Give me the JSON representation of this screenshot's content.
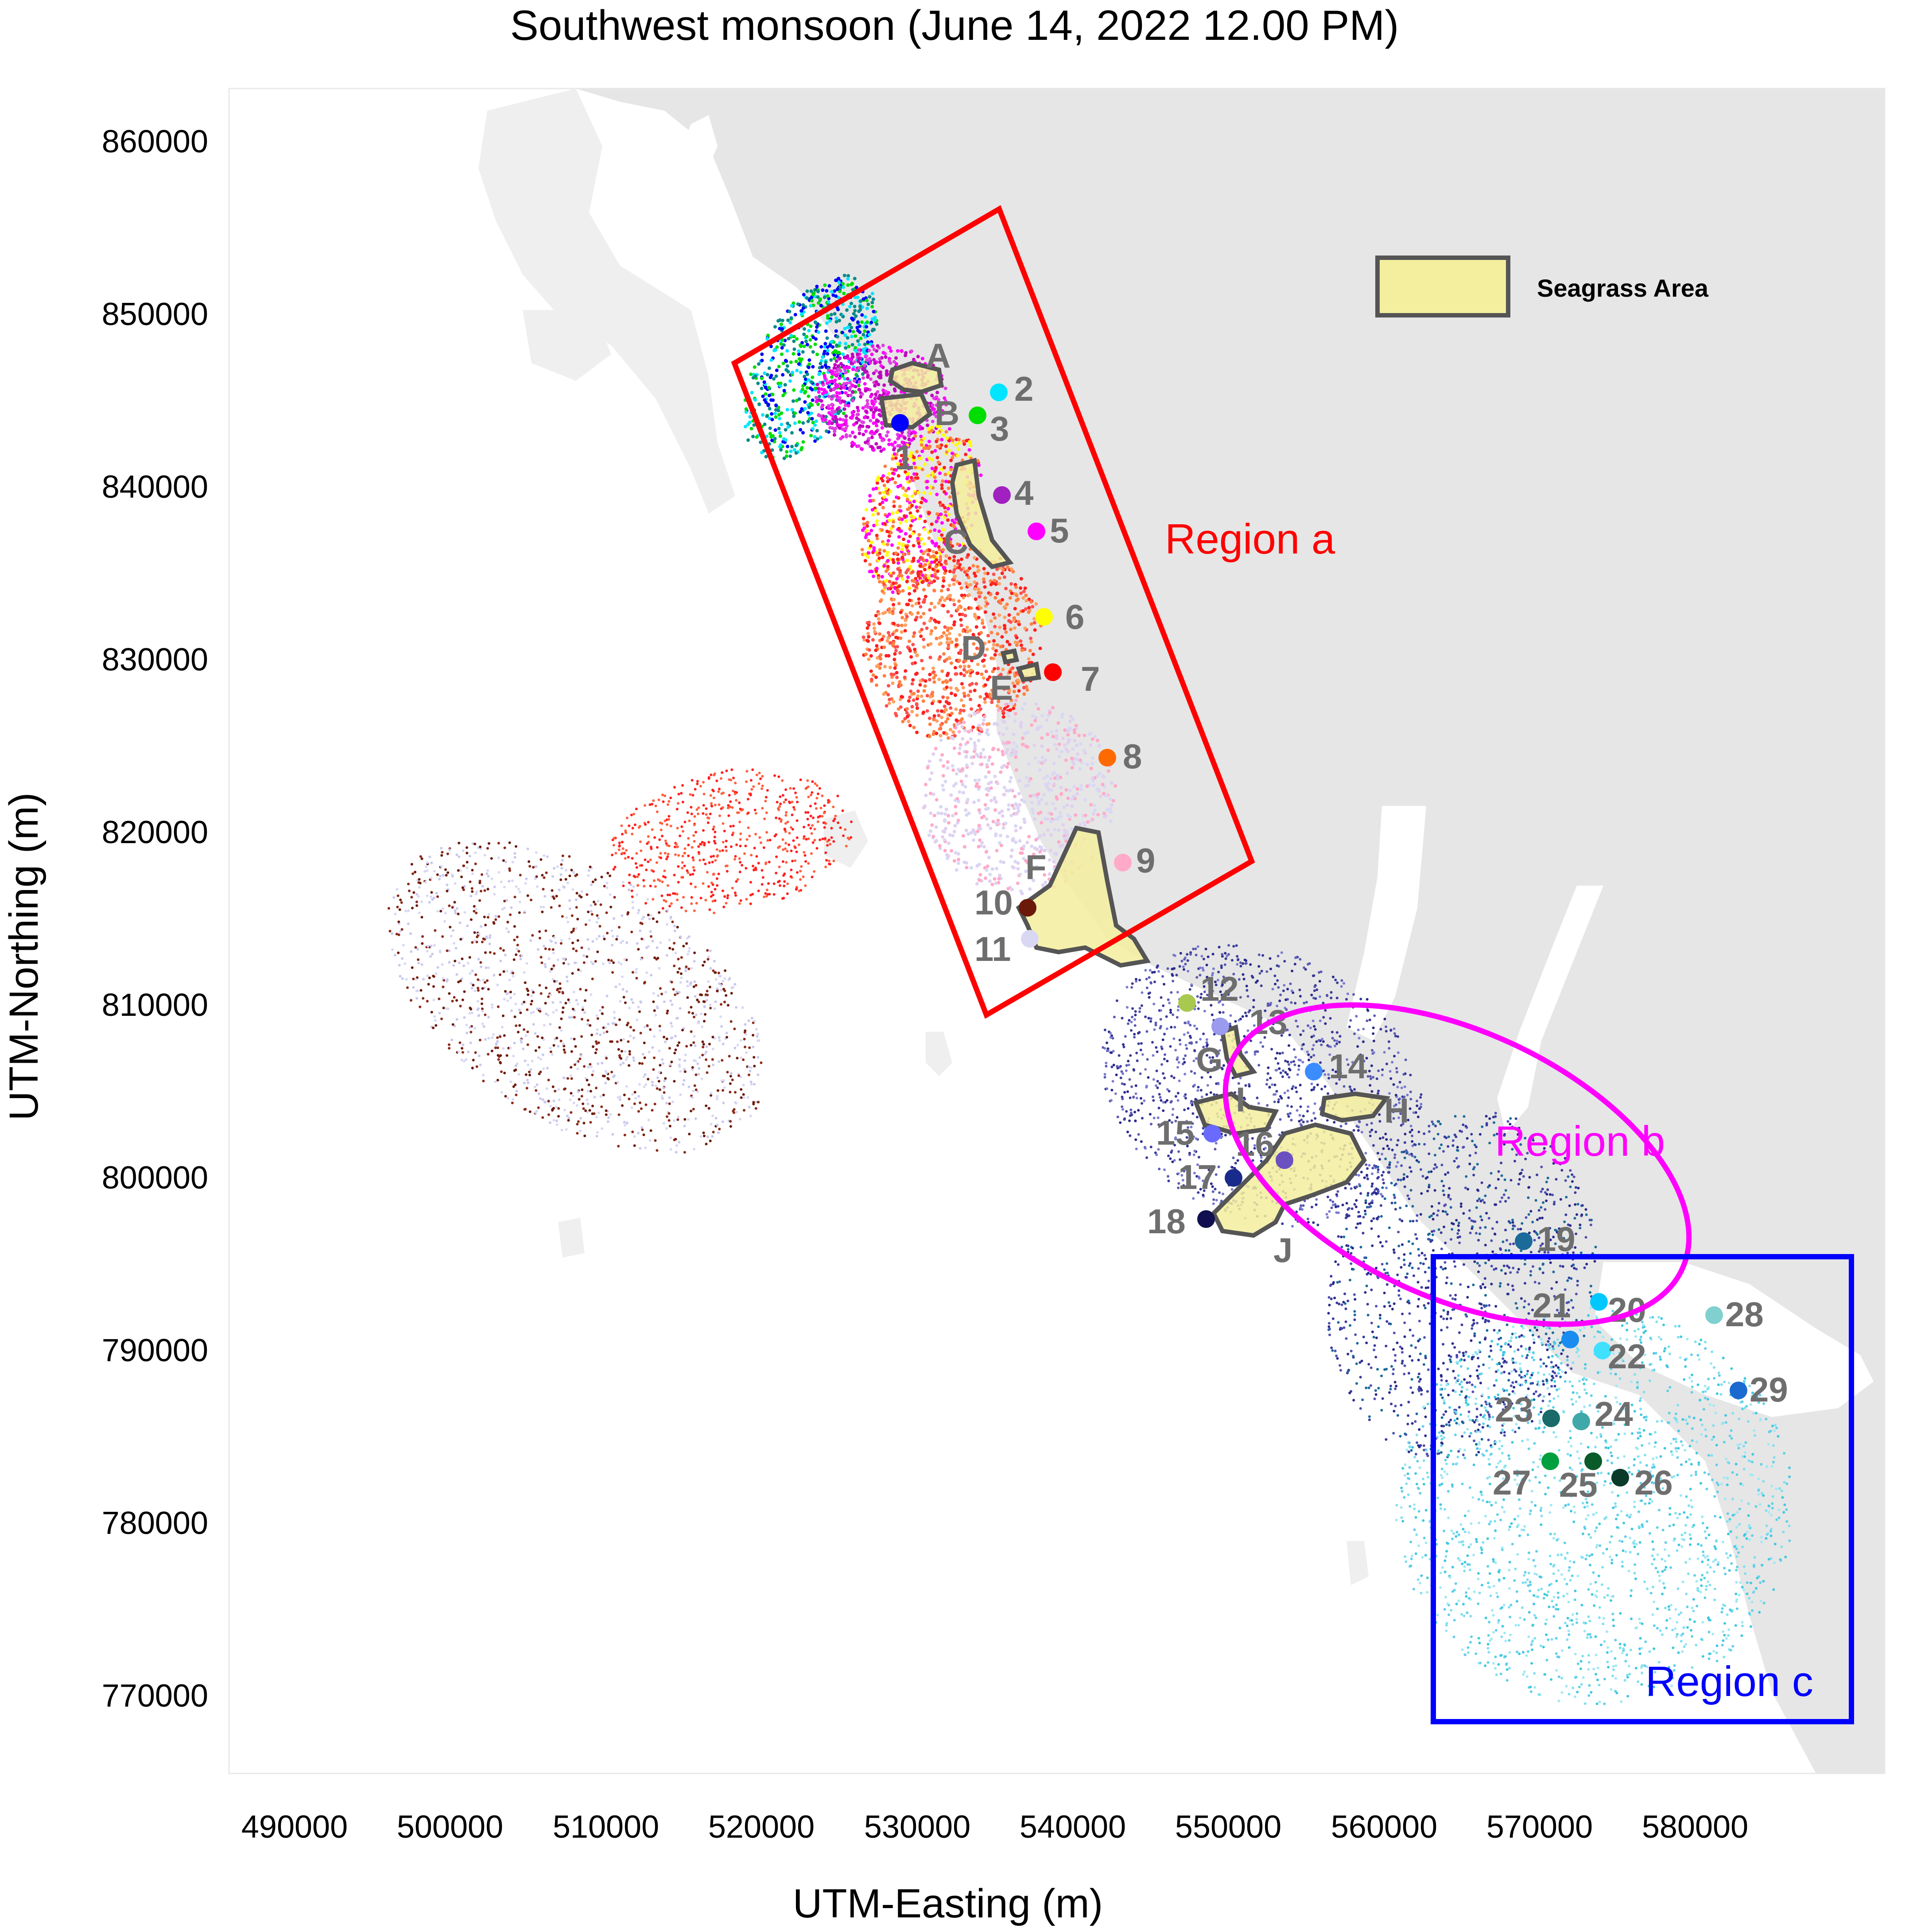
{
  "title": "Southwest monsoon (June 14, 2022 12.00 PM)",
  "x_axis": {
    "label": "UTM-Easting (m)",
    "ticks": [
      "490000",
      "500000",
      "510000",
      "520000",
      "530000",
      "540000",
      "550000",
      "560000",
      "570000",
      "580000"
    ]
  },
  "y_axis": {
    "label": "UTM-Northing (m)",
    "ticks": [
      "860000",
      "850000",
      "840000",
      "830000",
      "820000",
      "810000",
      "800000",
      "790000",
      "780000",
      "770000"
    ]
  },
  "legend": {
    "label": "Seagrass Area"
  },
  "regions": [
    {
      "id": "a",
      "label": "Region a",
      "color": "#ff0000"
    },
    {
      "id": "b",
      "label": "Region b",
      "color": "#ff00ff"
    },
    {
      "id": "c",
      "label": "Region c",
      "color": "#0000ff"
    }
  ],
  "seagrass_labels": [
    "A",
    "B",
    "C",
    "D",
    "E",
    "F",
    "G",
    "H",
    "I",
    "J"
  ],
  "stations": [
    {
      "label": "1",
      "color": "#0000ff"
    },
    {
      "label": "2",
      "color": "#00e5ff"
    },
    {
      "label": "3",
      "color": "#00dd00"
    },
    {
      "label": "4",
      "color": "#a020c0"
    },
    {
      "label": "5",
      "color": "#ff00ff"
    },
    {
      "label": "6",
      "color": "#ffff00"
    },
    {
      "label": "7",
      "color": "#ff0000"
    },
    {
      "label": "8",
      "color": "#ff6a00"
    },
    {
      "label": "9",
      "color": "#ffaac8"
    },
    {
      "label": "10",
      "color": "#6b1a0a"
    },
    {
      "label": "11",
      "color": "#d8d8f4"
    },
    {
      "label": "12",
      "color": "#a8c850"
    },
    {
      "label": "13",
      "color": "#9a9aee"
    },
    {
      "label": "14",
      "color": "#3a8cff"
    },
    {
      "label": "15",
      "color": "#6a6aff"
    },
    {
      "label": "16",
      "color": "#6a50c0"
    },
    {
      "label": "17",
      "color": "#1a2a8a"
    },
    {
      "label": "18",
      "color": "#101050"
    },
    {
      "label": "19",
      "color": "#1a6a9a"
    },
    {
      "label": "20",
      "color": "#00c8ff"
    },
    {
      "label": "21",
      "color": "#1a8cf0"
    },
    {
      "label": "22",
      "color": "#40e0ff"
    },
    {
      "label": "23",
      "color": "#1a6a6a"
    },
    {
      "label": "24",
      "color": "#40a8a8"
    },
    {
      "label": "25",
      "color": "#0a5a2a"
    },
    {
      "label": "26",
      "color": "#0a3a2a"
    },
    {
      "label": "27",
      "color": "#00a040"
    },
    {
      "label": "28",
      "color": "#80d0d0"
    },
    {
      "label": "29",
      "color": "#1a6ad0"
    }
  ]
}
